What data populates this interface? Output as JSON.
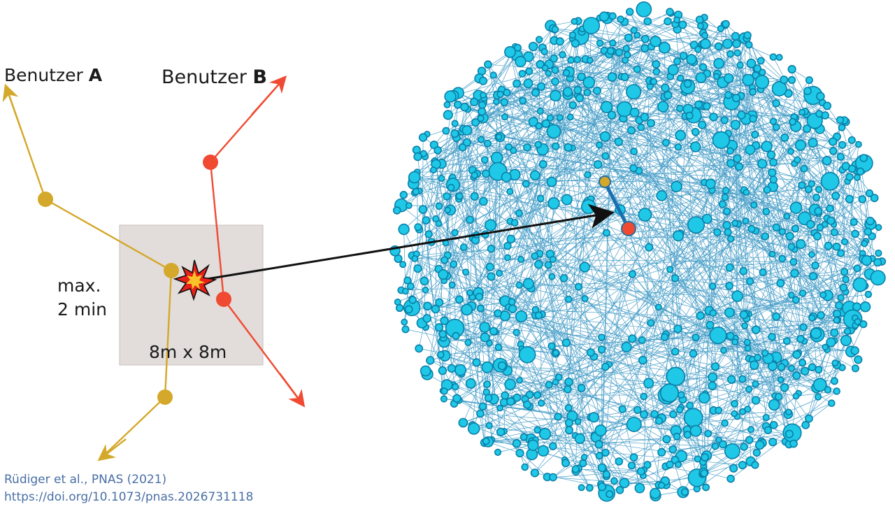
{
  "labels": {
    "user_a_prefix": "Benutzer ",
    "user_a_letter": "A",
    "user_b_prefix": "Benutzer ",
    "user_b_letter": "B",
    "time_line1": "max.",
    "time_line2": "2 min",
    "area": "8m x 8m"
  },
  "citation": {
    "line1": "Rüdiger et al., PNAS (2021)",
    "line2": "https://doi.org/10.1073/pnas.2026731118"
  },
  "colors": {
    "user_a": "#d4a82a",
    "user_b": "#f04a32",
    "zone": "#e2dcda",
    "node_fill": "#1ec8e6",
    "node_stroke": "#0b7fa8",
    "edge": "#2c8fbf",
    "highlight_edge": "#1b6fb0",
    "arrow": "#111111",
    "citation": "#4a6fa5"
  },
  "icons": {
    "contact": "explosion-star-icon"
  }
}
